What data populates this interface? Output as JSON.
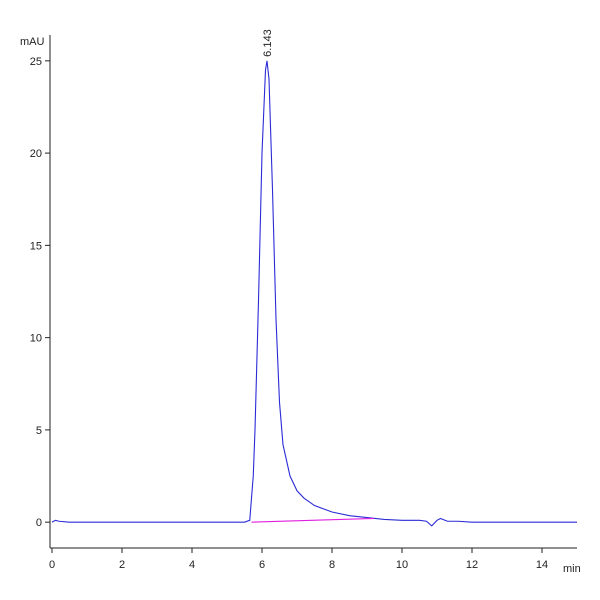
{
  "chart_data": {
    "type": "line",
    "x_label": "min",
    "y_label": "mAU",
    "xlim": [
      0,
      15
    ],
    "ylim": [
      -1.4,
      26.4
    ],
    "xticks": [
      0,
      2,
      4,
      6,
      8,
      10,
      12,
      14
    ],
    "yticks": [
      0,
      5,
      10,
      15,
      20,
      25
    ],
    "grid": false,
    "series": [
      {
        "color": "#2b2bd6",
        "x": [
          0,
          0.1,
          0.2,
          0.5,
          1,
          2,
          3,
          4,
          5,
          5.5,
          5.65,
          5.75,
          5.8,
          5.9,
          6.0,
          6.1,
          6.143,
          6.2,
          6.3,
          6.4,
          6.5,
          6.6,
          6.8,
          7.0,
          7.2,
          7.5,
          8,
          8.5,
          9,
          9.5,
          10,
          10.5,
          10.7,
          10.85,
          11.0,
          11.1,
          11.3,
          11.6,
          12,
          13,
          14,
          15
        ],
        "values": [
          0,
          0.1,
          0.05,
          0,
          0,
          0,
          0,
          0,
          0,
          0,
          0.1,
          2.5,
          5,
          12,
          20,
          24.5,
          25,
          24,
          18,
          11,
          6.5,
          4.2,
          2.5,
          1.7,
          1.3,
          0.9,
          0.55,
          0.35,
          0.25,
          0.15,
          0.1,
          0.1,
          0.05,
          -0.2,
          0.1,
          0.2,
          0.05,
          0.05,
          0,
          0,
          0,
          0
        ]
      },
      {
        "color": "#e020e0",
        "x": [
          5.7,
          9.2
        ],
        "values": [
          0,
          0.2
        ]
      }
    ],
    "annotations": [
      {
        "text": "6.143",
        "x": 6.143,
        "y": 25
      }
    ]
  }
}
